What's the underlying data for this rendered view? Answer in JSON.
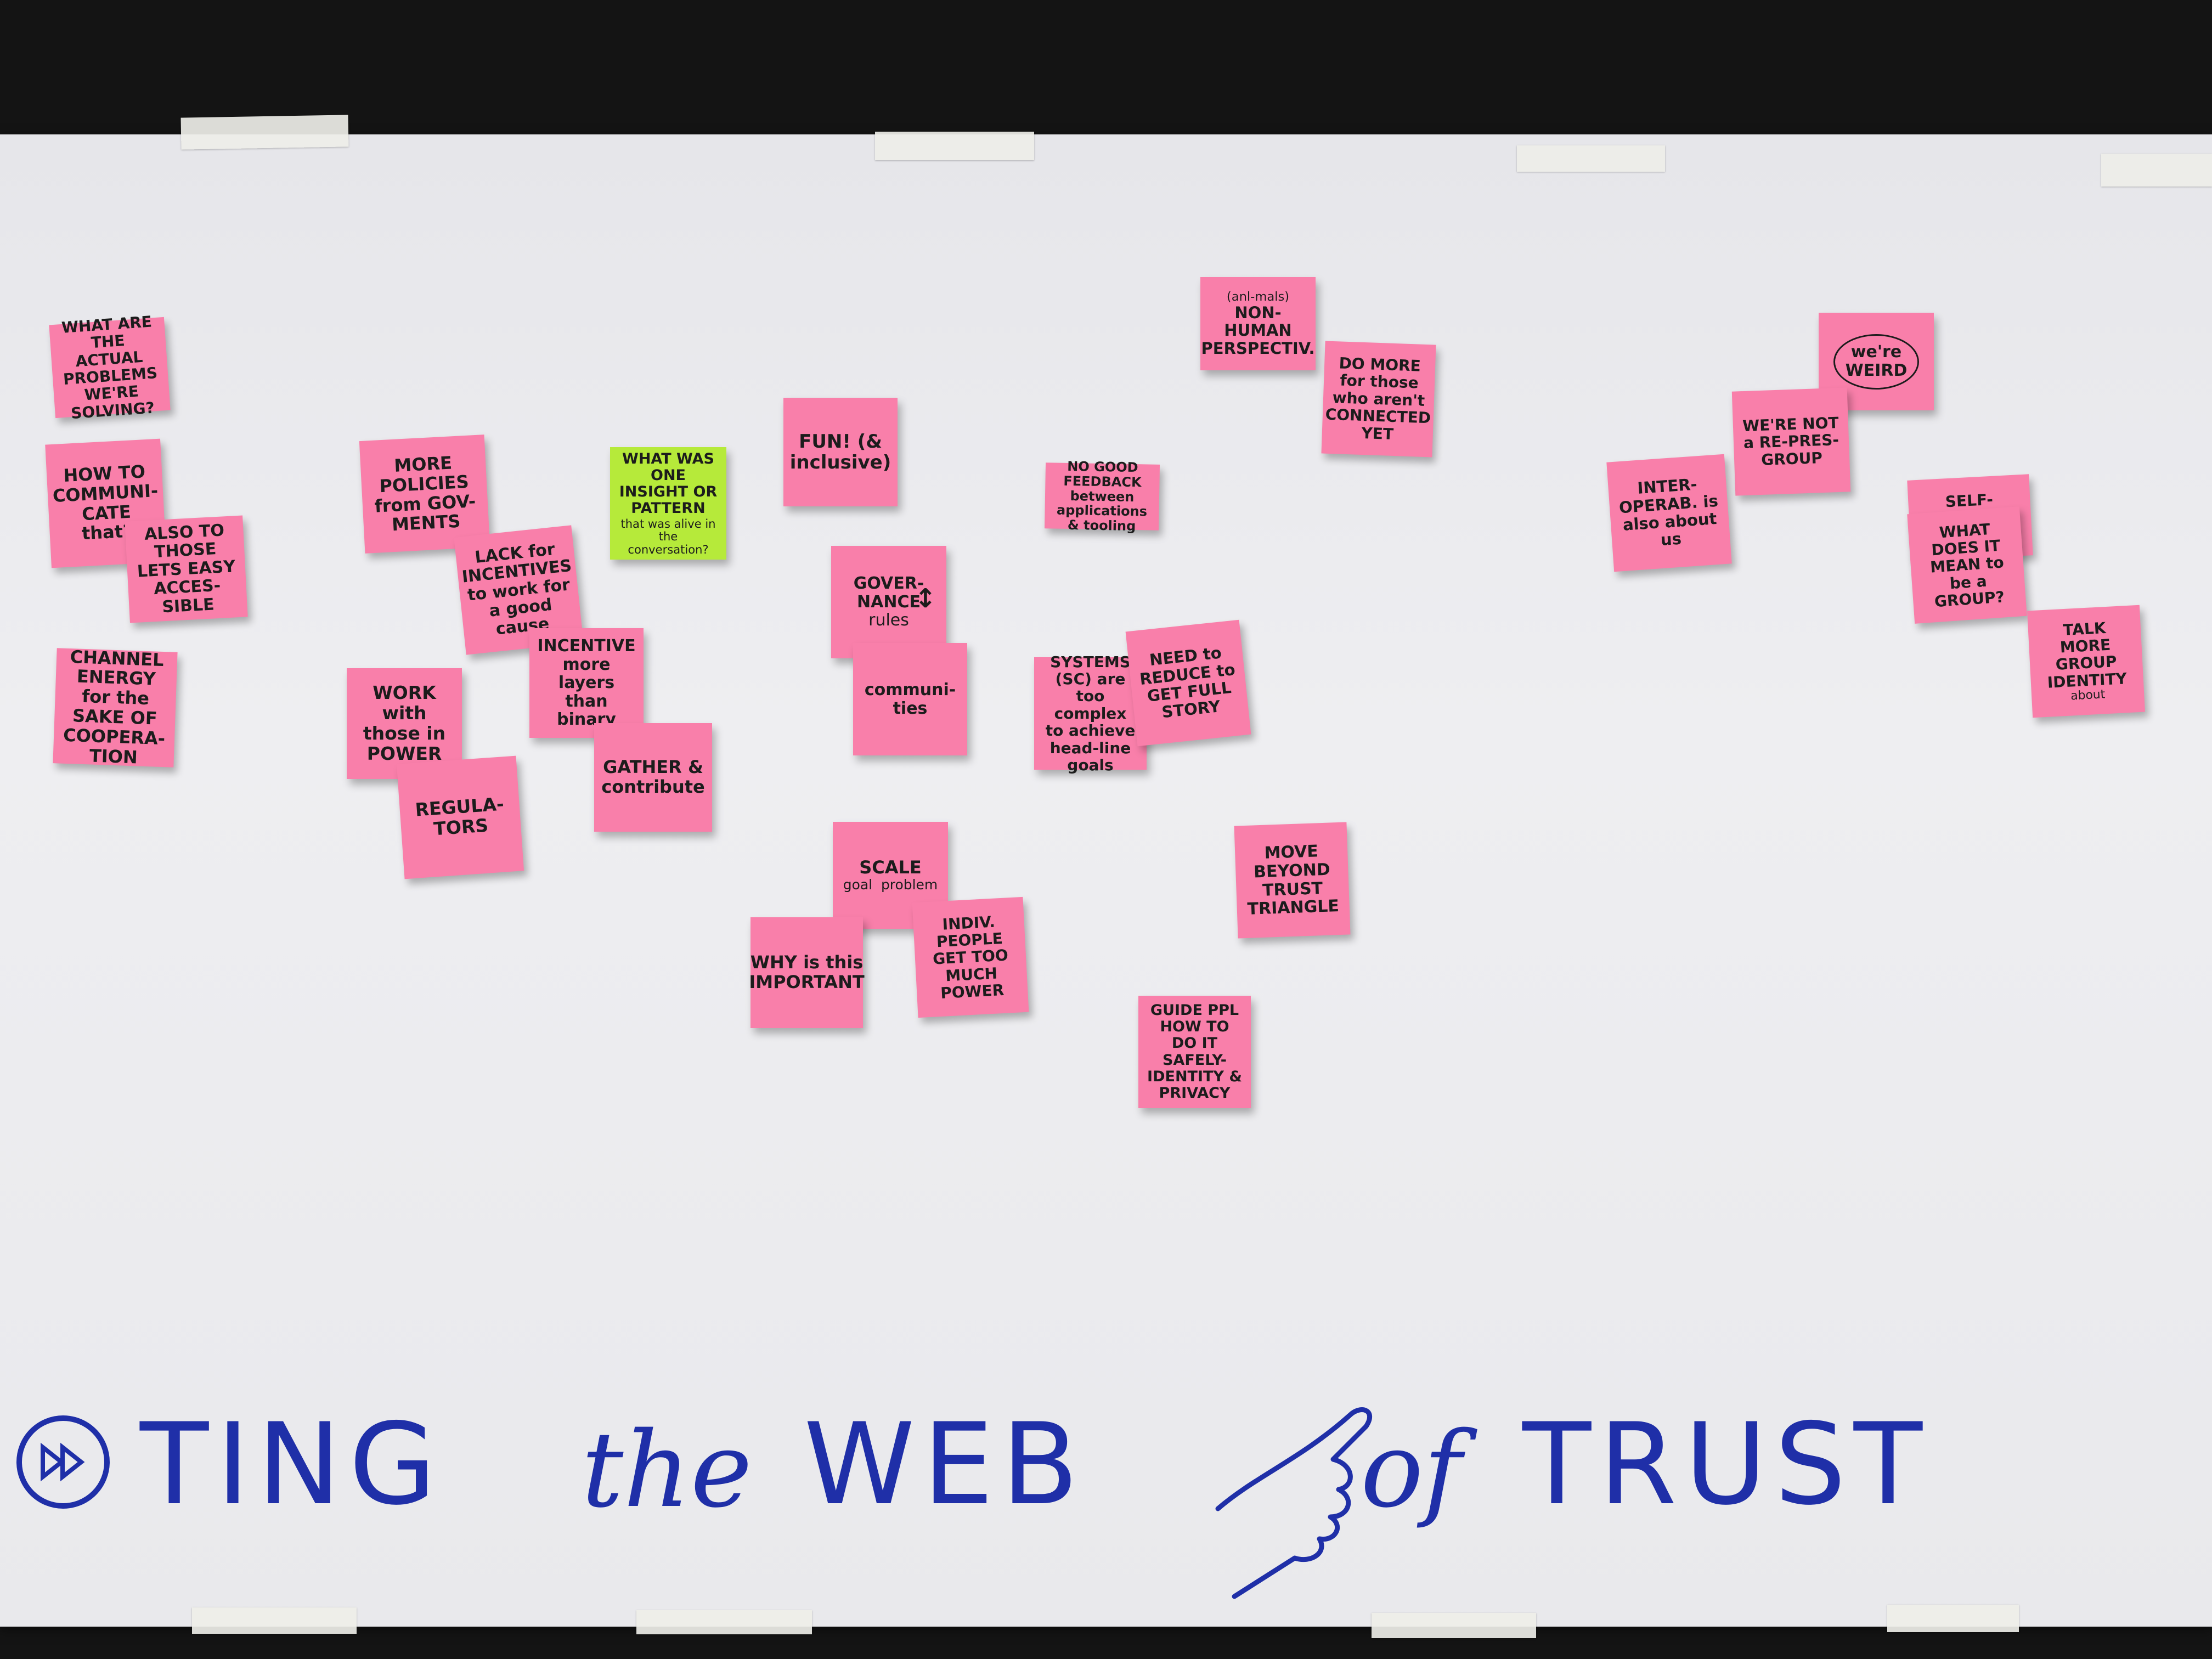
{
  "banner": {
    "part1": "TING",
    "part2": "the",
    "part3": "WEB",
    "part4": "of",
    "part5": "TRUST"
  },
  "notes": {
    "n1": "WHAT ARE THE ACTUAL PROBLEMS WE'RE SOLVING?",
    "n2": "HOW TO COMMUNI-CATE that?",
    "n3": "ALSO TO THOSE LETS EASY ACCES-SIBLE",
    "n4": "CHANNEL ENERGY for the SAKE OF COOPERA-TION",
    "n5": "MORE POLICIES from GOV-MENTS",
    "n6": "WHAT WAS ONE INSIGHT OR PATTERN",
    "n6b": "that was alive in the conversation?",
    "n7": "LACK for INCENTIVES to work for a good cause",
    "n8": "INCENTIVE more layers than binary",
    "n9": "WORK with those in POWER",
    "n10": "REGULA-TORS",
    "n11": "GATHER & contribute",
    "n12": "FUN! (& inclusive)",
    "n13": "GOVER-NANCE",
    "n13b": "rules",
    "n14": "communi-ties",
    "n15": "SCALE",
    "n15b": "goal  problem",
    "n16": "WHY is this IMPORTANT",
    "n17": "INDIV. PEOPLE GET TOO MUCH POWER",
    "n18": "NON-HUMAN PERSPECTIV.",
    "n18b": "(anl-mals)",
    "n19": "DO MORE for those who aren't CONNECTED YET",
    "n20": "NO GOOD FEEDBACK between applications & tooling",
    "n21": "SYSTEMS (SC) are too complex to achieve head-line goals",
    "n22": "NEED to REDUCE to GET FULL STORY",
    "n23": "MOVE BEYOND TRUST TRIANGLE",
    "n24": "GUIDE PPL HOW TO DO IT SAFELY-IDENTITY & PRIVACY",
    "n25": "we're WEIRD",
    "n26": "WE'RE NOT a RE-PRES-GROUP",
    "n27": "INTER-OPERAB. is also about us",
    "n28": "WHAT DOES IT MEAN to be a GROUP?",
    "n29": "SELF-SOVEREIGN GROUPS",
    "n30": "TALK MORE GROUP IDENTITY",
    "n30b": "about"
  },
  "colors": {
    "board": "#e9e9ec",
    "pink_note": "#f97faa",
    "green_note": "#b6ea3a",
    "marker_blue": "#1f2fa8"
  }
}
